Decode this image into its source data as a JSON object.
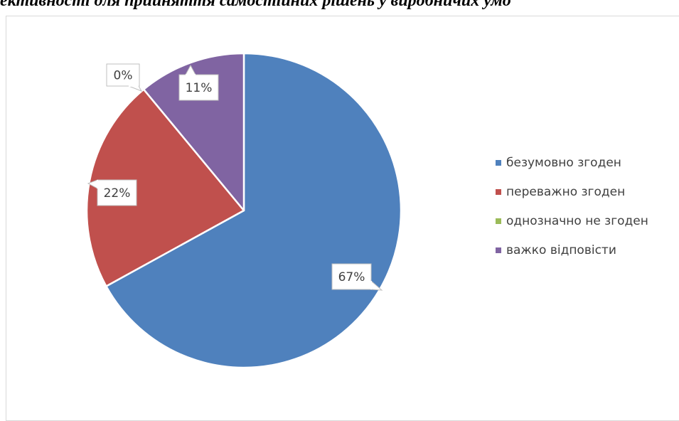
{
  "heading": "ективності для прийняття самостійних рішень у виробничих умо",
  "chart_data": {
    "type": "pie",
    "title": "",
    "slices": [
      {
        "label": "безумовно згоден",
        "value": 67,
        "data_label": "67%",
        "color": "#4f81bd"
      },
      {
        "label": "переважно згоден",
        "value": 22,
        "data_label": "22%",
        "color": "#c0504d"
      },
      {
        "label": "однозначно не згоден",
        "value": 0,
        "data_label": "0%",
        "color": "#9bbb59"
      },
      {
        "label": "важко відповісти",
        "value": 11,
        "data_label": "11%",
        "color": "#8064a2"
      }
    ],
    "start_angle": "12 o'clock",
    "direction": "clockwise",
    "data_labels": "callouts",
    "legend_position": "right"
  }
}
